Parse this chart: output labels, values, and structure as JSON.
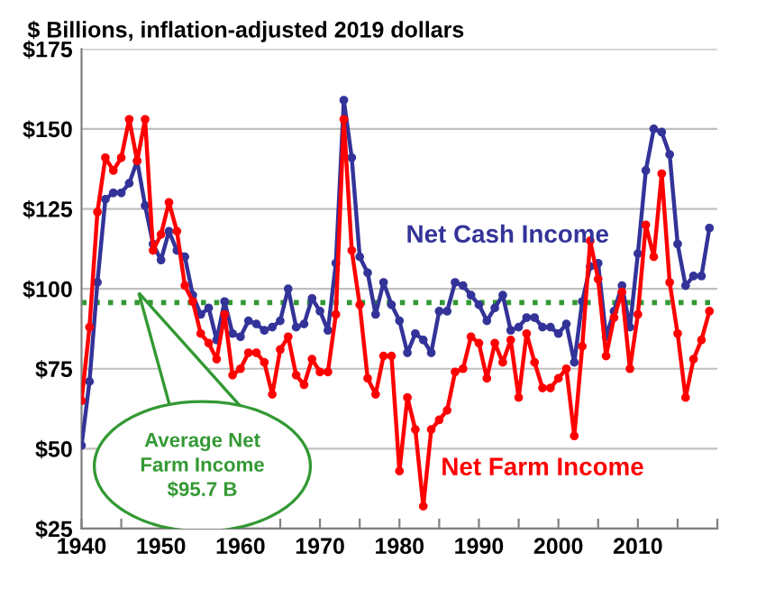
{
  "chart_data": {
    "type": "line",
    "title": "$ Billions, inflation-adjusted 2019 dollars",
    "x": [
      1940,
      1941,
      1942,
      1943,
      1944,
      1945,
      1946,
      1947,
      1948,
      1949,
      1950,
      1951,
      1952,
      1953,
      1954,
      1955,
      1956,
      1957,
      1958,
      1959,
      1960,
      1961,
      1962,
      1963,
      1964,
      1965,
      1966,
      1967,
      1968,
      1969,
      1970,
      1971,
      1972,
      1973,
      1974,
      1975,
      1976,
      1977,
      1978,
      1979,
      1980,
      1981,
      1982,
      1983,
      1984,
      1985,
      1986,
      1987,
      1988,
      1989,
      1990,
      1991,
      1992,
      1993,
      1994,
      1995,
      1996,
      1997,
      1998,
      1999,
      2000,
      2001,
      2002,
      2003,
      2004,
      2005,
      2006,
      2007,
      2008,
      2009,
      2010,
      2011,
      2012,
      2013,
      2014,
      2015,
      2016,
      2017,
      2018,
      2019
    ],
    "series": [
      {
        "name": "Net Cash Income",
        "color": "#333399",
        "values": [
          51,
          71,
          102,
          128,
          130,
          130,
          133,
          140,
          126,
          114,
          109,
          118,
          112,
          110,
          98,
          92,
          94,
          84,
          96,
          86,
          85,
          90,
          89,
          87,
          88,
          90,
          100,
          88,
          89,
          97,
          93,
          87,
          108,
          159,
          141,
          110,
          105,
          92,
          102,
          95,
          90,
          80,
          86,
          84,
          80,
          93,
          93,
          102,
          101,
          98,
          95,
          90,
          94,
          98,
          87,
          88,
          91,
          91,
          88,
          88,
          86,
          89,
          77,
          96,
          107,
          108,
          85,
          93,
          101,
          88,
          111,
          137,
          150,
          149,
          142,
          114,
          101,
          104,
          104,
          119
        ]
      },
      {
        "name": "Net Farm Income",
        "color": "#ff0000",
        "values": [
          65,
          88,
          124,
          141,
          137,
          141,
          153,
          140,
          153,
          112,
          117,
          127,
          118,
          101,
          96,
          86,
          83,
          78,
          92,
          73,
          75,
          80,
          80,
          77,
          67,
          81,
          85,
          73,
          70,
          78,
          74,
          74,
          92,
          153,
          112,
          95,
          72,
          67,
          79,
          79,
          43,
          66,
          56,
          32,
          56,
          59,
          62,
          74,
          75,
          85,
          83,
          72,
          83,
          77,
          84,
          66,
          86,
          77,
          69,
          69,
          72,
          75,
          54,
          82,
          115,
          103,
          79,
          91,
          99,
          75,
          92,
          120,
          110,
          136,
          102,
          86,
          66,
          78,
          84,
          93
        ]
      }
    ],
    "xlim": [
      1940,
      2020
    ],
    "xticks": [
      1940,
      {
        "value": 1945,
        "label": null
      },
      1950,
      {
        "value": 1955,
        "label": null
      },
      1960,
      {
        "value": 1965,
        "label": null
      },
      1970,
      {
        "value": 1975,
        "label": null
      },
      1980,
      {
        "value": 1985,
        "label": null
      },
      1990,
      {
        "value": 1995,
        "label": null
      },
      2000,
      {
        "value": 2005,
        "label": null
      },
      2010,
      {
        "value": 2015,
        "label": null
      },
      {
        "value": 2020,
        "label": null
      }
    ],
    "ylim": [
      25,
      175
    ],
    "yticks": [
      {
        "value": 25,
        "label": "$25"
      },
      {
        "value": 50,
        "label": "$50"
      },
      {
        "value": 75,
        "label": "$75"
      },
      {
        "value": 100,
        "label": "$100"
      },
      {
        "value": 125,
        "label": "$125"
      },
      {
        "value": 150,
        "label": "$150"
      },
      {
        "value": 175,
        "label": "$175"
      }
    ],
    "ref_lines": [
      {
        "axis": "y",
        "value": 95.7,
        "label": "Average Net\nFarm Income\n$95.7 B",
        "color": "#339933",
        "line_style": "dotted"
      }
    ],
    "grid": "y",
    "legend": false,
    "marker": "circle",
    "line_style": "solid"
  }
}
